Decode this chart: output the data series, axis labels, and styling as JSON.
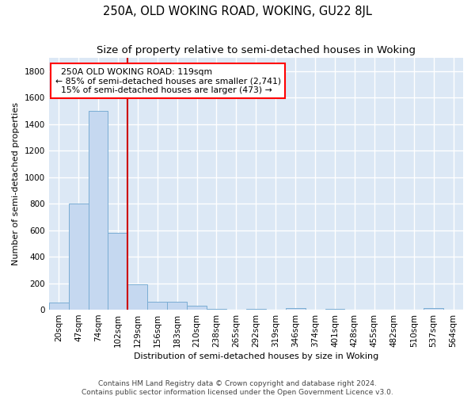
{
  "title": "250A, OLD WOKING ROAD, WOKING, GU22 8JL",
  "subtitle": "Size of property relative to semi-detached houses in Woking",
  "xlabel": "Distribution of semi-detached houses by size in Woking",
  "ylabel": "Number of semi-detached properties",
  "footer_line1": "Contains HM Land Registry data © Crown copyright and database right 2024.",
  "footer_line2": "Contains public sector information licensed under the Open Government Licence v3.0.",
  "bar_labels": [
    "20sqm",
    "47sqm",
    "74sqm",
    "102sqm",
    "129sqm",
    "156sqm",
    "183sqm",
    "210sqm",
    "238sqm",
    "265sqm",
    "292sqm",
    "319sqm",
    "346sqm",
    "374sqm",
    "401sqm",
    "428sqm",
    "455sqm",
    "482sqm",
    "510sqm",
    "537sqm",
    "564sqm"
  ],
  "bar_values": [
    55,
    800,
    1500,
    580,
    190,
    60,
    60,
    30,
    5,
    0,
    5,
    0,
    15,
    0,
    5,
    0,
    0,
    0,
    0,
    10,
    0
  ],
  "bar_color": "#c5d8f0",
  "bar_edgecolor": "#7aadd4",
  "ylim": [
    0,
    1900
  ],
  "yticks": [
    0,
    200,
    400,
    600,
    800,
    1000,
    1200,
    1400,
    1600,
    1800
  ],
  "property_label": "250A OLD WOKING ROAD: 119sqm",
  "annotation_line1": "← 85% of semi-detached houses are smaller (2,741)",
  "annotation_line2": "15% of semi-detached houses are larger (473) →",
  "red_line_x": 3.5,
  "annotation_box_facecolor": "white",
  "annotation_box_edgecolor": "red",
  "background_color": "#dce8f5",
  "grid_color": "white",
  "title_fontsize": 10.5,
  "subtitle_fontsize": 9.5,
  "axis_label_fontsize": 8,
  "tick_fontsize": 7.5,
  "annotation_fontsize": 7.8,
  "footer_fontsize": 6.5
}
